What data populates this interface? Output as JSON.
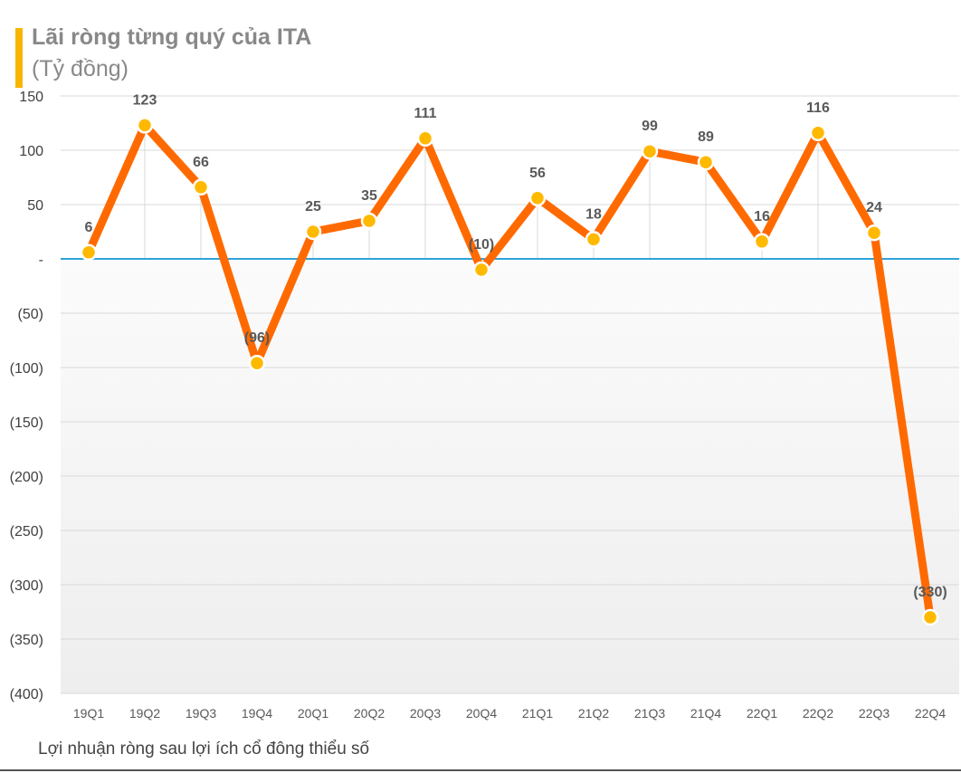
{
  "header": {
    "title": "Lãi ròng từng quý của ITA",
    "subtitle": "(Tỷ đồng)"
  },
  "footnote": "Lợi nhuận ròng sau lợi ích cổ đông thiểu số",
  "colors": {
    "line": "#ff6a00",
    "marker": "#ffb900",
    "zero_line": "#2ea3d8",
    "accent": "#f7b500",
    "grid": "#d9d9d9"
  },
  "chart_data": {
    "type": "line",
    "title": "Lãi ròng từng quý của ITA",
    "ylabel": "(Tỷ đồng)",
    "xlabel": "",
    "categories": [
      "19Q1",
      "19Q2",
      "19Q3",
      "19Q4",
      "20Q1",
      "20Q2",
      "20Q3",
      "20Q4",
      "21Q1",
      "21Q2",
      "21Q3",
      "21Q4",
      "22Q1",
      "22Q2",
      "22Q3",
      "22Q4"
    ],
    "series": [
      {
        "values": [
          6,
          123,
          66,
          -96,
          25,
          35,
          111,
          -10,
          56,
          18,
          99,
          89,
          16,
          116,
          24,
          -330
        ]
      }
    ],
    "data_labels": [
      "6",
      "123",
      "66",
      "(96)",
      "25",
      "35",
      "111",
      "(10)",
      "56",
      "18",
      "99",
      "89",
      "16",
      "116",
      "24",
      "(330)"
    ],
    "ylim": [
      -400,
      150
    ],
    "yticks": [
      150,
      100,
      50,
      0,
      -50,
      -100,
      -150,
      -200,
      -250,
      -300,
      -350,
      -400
    ],
    "ytick_labels": [
      "150",
      "100",
      "50",
      "-",
      "(50)",
      "(100)",
      "(150)",
      "(200)",
      "(250)",
      "(300)",
      "(350)",
      "(400)"
    ],
    "grid": true,
    "legend": "none"
  }
}
